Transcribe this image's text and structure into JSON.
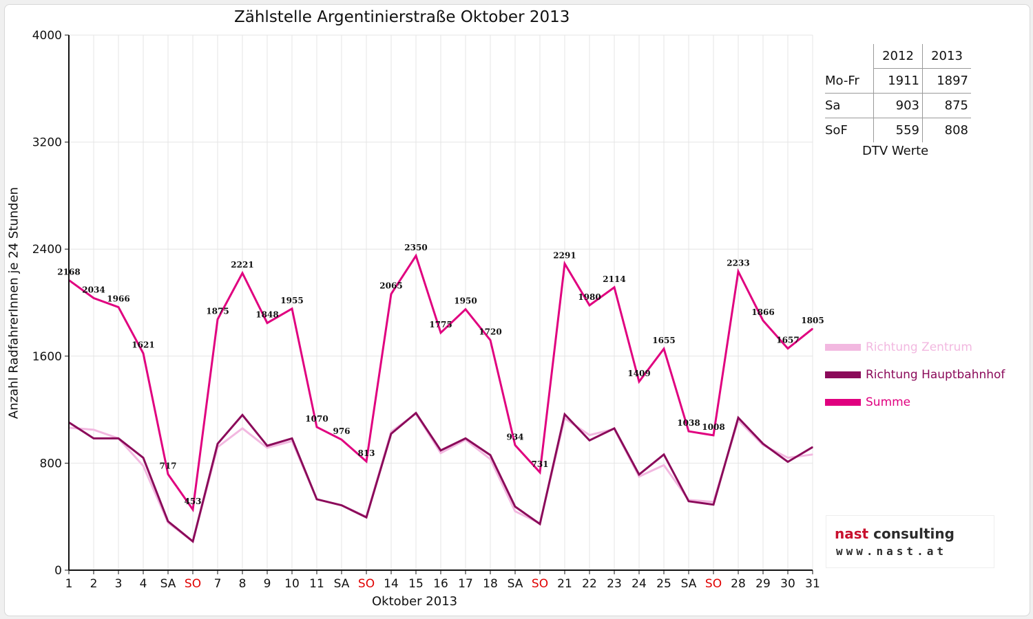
{
  "chart_data": {
    "type": "line",
    "title": "Zählstelle Argentinierstraße Oktober 2013",
    "xlabel": "Oktober 2013",
    "ylabel": "Anzahl RadfahrerInnen je 24 Stunden",
    "ylim": [
      0,
      4000
    ],
    "yticks": [
      "0",
      "800",
      "1600",
      "2400",
      "3200",
      "4000"
    ],
    "grid": true,
    "legend_position": "right",
    "categories": [
      "1",
      "2",
      "3",
      "4",
      "SA",
      "SO",
      "7",
      "8",
      "9",
      "10",
      "11",
      "SA",
      "SO",
      "14",
      "15",
      "16",
      "17",
      "18",
      "SA",
      "SO",
      "21",
      "22",
      "23",
      "24",
      "25",
      "SA",
      "SO",
      "28",
      "29",
      "30",
      "31"
    ],
    "category_colors": [
      "#111111",
      "#111111",
      "#111111",
      "#111111",
      "#111111",
      "#e00000",
      "#111111",
      "#111111",
      "#111111",
      "#111111",
      "#111111",
      "#111111",
      "#e00000",
      "#111111",
      "#111111",
      "#111111",
      "#111111",
      "#111111",
      "#111111",
      "#e00000",
      "#111111",
      "#111111",
      "#111111",
      "#111111",
      "#111111",
      "#111111",
      "#e00000",
      "#111111",
      "#111111",
      "#111111",
      "#111111"
    ],
    "series": [
      {
        "name": "Richtung Zentrum",
        "color": "#f2b8e0",
        "values": [
          1065,
          1050,
          985,
          780,
          355,
          215,
          920,
          1060,
          915,
          965,
          530,
          485,
          400,
          1035,
          1170,
          875,
          975,
          830,
          440,
          350,
          1135,
          1010,
          1055,
          700,
          785,
          525,
          510,
          1120,
          935,
          840,
          865
        ]
      },
      {
        "name": "Richtung Hauptbahnhof",
        "color": "#8b0a5a",
        "values": [
          1105,
          985,
          985,
          840,
          365,
          215,
          945,
          1160,
          930,
          985,
          530,
          485,
          395,
          1020,
          1175,
          895,
          985,
          860,
          475,
          345,
          1165,
          970,
          1060,
          715,
          865,
          515,
          490,
          1140,
          945,
          810,
          920
        ]
      },
      {
        "name": "Summe",
        "color": "#e0007f",
        "values": [
          2168,
          2034,
          1966,
          1621,
          717,
          453,
          1875,
          2221,
          1848,
          1955,
          1070,
          976,
          813,
          2065,
          2350,
          1775,
          1950,
          1720,
          934,
          731,
          2291,
          1980,
          2114,
          1409,
          1655,
          1038,
          1008,
          2233,
          1866,
          1657,
          1805
        ],
        "labels": [
          "2168",
          "2034",
          "1966",
          "1621",
          "717",
          "453",
          "1875",
          "2221",
          "1848",
          "1955",
          "1070",
          "976",
          "813",
          "2065",
          "2350",
          "1775",
          "1950",
          "1720",
          "934",
          "731",
          "2291",
          "1980",
          "2114",
          "1409",
          "1655",
          "1038",
          "1008",
          "2233",
          "1866",
          "1657",
          "1805"
        ]
      }
    ]
  },
  "dtv_table": {
    "columns": [
      "2012",
      "2013"
    ],
    "rows": [
      {
        "label": "Mo-Fr",
        "v2012": "1911",
        "v2013": "1897"
      },
      {
        "label": "Sa",
        "v2012": "903",
        "v2013": "875"
      },
      {
        "label": "SoF",
        "v2012": "559",
        "v2013": "808"
      }
    ],
    "caption": "DTV Werte"
  },
  "logo": {
    "brand_accent": "nast",
    "brand_rest": " consulting",
    "url": "www.nast.at"
  }
}
